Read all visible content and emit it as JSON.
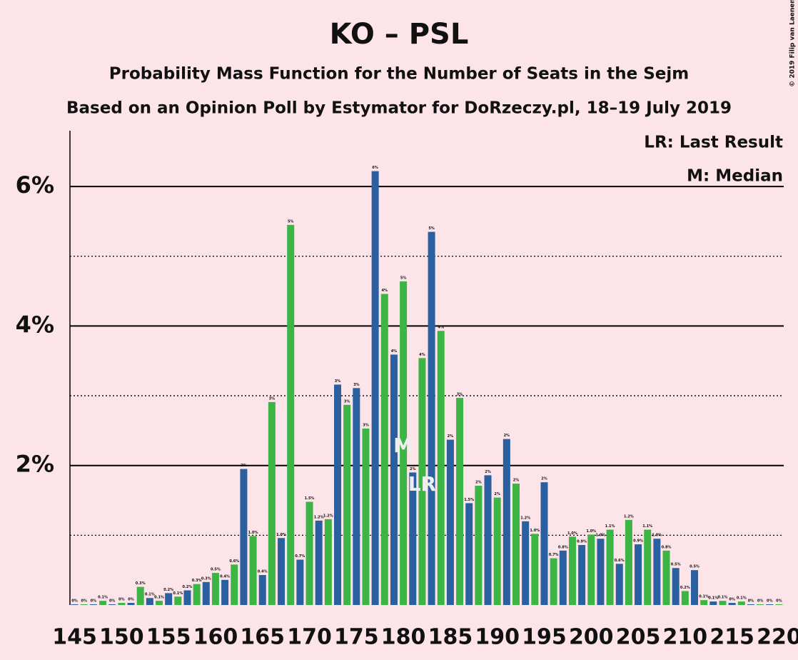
{
  "chart_data": {
    "type": "bar",
    "title": "KO – PSL",
    "subtitle": "Probability Mass Function for the Number of Seats in the Sejm",
    "subtitle2": "Based on an Opinion Poll by Estymator for DoRzeczy.pl, 18–19 July 2019",
    "copyright": "© 2019 Filip van Laenen",
    "legend": [
      "LR: Last Result",
      "M: Median"
    ],
    "x": [
      145,
      146,
      147,
      148,
      149,
      150,
      151,
      152,
      153,
      154,
      155,
      156,
      157,
      158,
      159,
      160,
      161,
      162,
      163,
      164,
      165,
      166,
      167,
      168,
      169,
      170,
      171,
      172,
      173,
      174,
      175,
      176,
      177,
      178,
      179,
      180,
      181,
      182,
      183,
      184,
      185,
      186,
      187,
      188,
      189,
      190,
      191,
      192,
      193,
      194,
      195,
      196,
      197,
      198,
      199,
      200,
      201,
      202,
      203,
      204,
      205,
      206,
      207,
      208,
      209,
      210,
      211,
      212,
      213,
      214,
      215,
      216,
      217,
      218,
      219,
      220
    ],
    "values": [
      0.01,
      0.01,
      0.01,
      0.06,
      0.01,
      0.03,
      0.03,
      0.26,
      0.1,
      0.06,
      0.17,
      0.12,
      0.21,
      0.3,
      0.33,
      0.46,
      0.36,
      0.58,
      1.95,
      0.99,
      0.43,
      2.91,
      0.96,
      5.45,
      0.65,
      1.48,
      1.21,
      1.23,
      3.16,
      2.87,
      3.11,
      2.53,
      6.22,
      4.46,
      3.59,
      4.64,
      1.9,
      3.54,
      5.35,
      3.93,
      2.37,
      2.97,
      1.46,
      1.71,
      1.86,
      1.54,
      2.38,
      1.74,
      1.2,
      1.02,
      1.76,
      0.67,
      0.78,
      0.98,
      0.86,
      1.01,
      0.95,
      1.08,
      0.59,
      1.22,
      0.87,
      1.08,
      0.95,
      0.78,
      0.53,
      0.2,
      0.5,
      0.07,
      0.05,
      0.06,
      0.03,
      0.05,
      0.01,
      0.01,
      0.01,
      0.01
    ],
    "value_labels": [
      "0%",
      "0%",
      "0%",
      "0.1%",
      "0%",
      "0%",
      "0%",
      "0.3%",
      "0.1%",
      "0.1%",
      "0.2%",
      "0.1%",
      "0.2%",
      "0.3%",
      "0.3%",
      "0.5%",
      "0.4%",
      "0.6%",
      "2%",
      "1.0%",
      "0.4%",
      "3%",
      "1.0%",
      "5%",
      "0.7%",
      "1.5%",
      "1.2%",
      "1.2%",
      "3%",
      "3%",
      "3%",
      "3%",
      "6%",
      "4%",
      "4%",
      "5%",
      "2%",
      "4%",
      "5%",
      "4%",
      "2%",
      "3%",
      "1.5%",
      "2%",
      "2%",
      "2%",
      "2%",
      "2%",
      "1.2%",
      "1.0%",
      "2%",
      "0.7%",
      "0.8%",
      "1.0%",
      "0.9%",
      "1.0%",
      "1.0%",
      "1.1%",
      "0.6%",
      "1.2%",
      "0.9%",
      "1.1%",
      "1.0%",
      "0.8%",
      "0.5%",
      "0.2%",
      "0.5%",
      "0.1%",
      "0.1%",
      "0.1%",
      "0%",
      "0.1%",
      "0%",
      "0%",
      "0%",
      "0%"
    ],
    "colors": [
      "#2a5fa0",
      "#3cb544"
    ],
    "markers": [
      {
        "x": 180,
        "label": "M"
      },
      {
        "x": 182,
        "label": "LR"
      }
    ],
    "xlim": [
      144.5,
      220.5
    ],
    "xticks": [
      145,
      150,
      155,
      160,
      165,
      170,
      175,
      180,
      185,
      190,
      195,
      200,
      205,
      210,
      215,
      220
    ],
    "ylim": [
      0,
      6.8
    ],
    "yticks": [
      {
        "value": 2,
        "label": "2%"
      },
      {
        "value": 4,
        "label": "4%"
      },
      {
        "value": 6,
        "label": "6%"
      }
    ],
    "minor_yticks": [
      1,
      3,
      5
    ],
    "grid": true
  }
}
